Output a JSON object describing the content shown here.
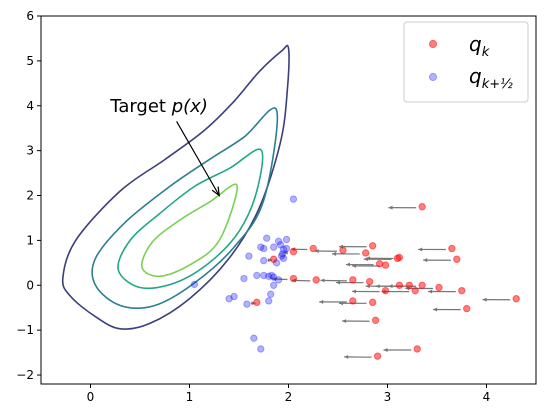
{
  "chart_data": {
    "type": "scatter",
    "xlim": [
      -0.5,
      4.5
    ],
    "ylim": [
      -2.2,
      6
    ],
    "x_ticks": [
      0,
      1,
      2,
      3,
      4
    ],
    "y_ticks": [
      -2,
      -1,
      0,
      1,
      2,
      3,
      4,
      5,
      6
    ],
    "grid": false,
    "legend": {
      "placement": "top-right",
      "entries": [
        {
          "label": "q",
          "sub": "k",
          "color": "#ff0000"
        },
        {
          "label": "q",
          "sub": "k+½",
          "color": "#0000ff"
        }
      ]
    },
    "annotation": {
      "text": "Target ",
      "math": "p(x)",
      "text_at": [
        0.2,
        4.0
      ],
      "arrow_to": [
        1.3,
        2.0
      ]
    },
    "contours": {
      "levels": 4,
      "colors": [
        "#3b3f7a",
        "#2a7f8e",
        "#22a884",
        "#7ad151"
      ],
      "outlines": [
        [
          [
            2.0,
            5.28
          ],
          [
            1.93,
            5.22
          ],
          [
            1.7,
            4.75
          ],
          [
            1.45,
            4.1
          ],
          [
            1.15,
            3.45
          ],
          [
            0.75,
            2.8
          ],
          [
            0.3,
            2.1
          ],
          [
            -0.15,
            1.0
          ],
          [
            -0.28,
            0.15
          ],
          [
            -0.2,
            -0.25
          ],
          [
            0.05,
            -0.7
          ],
          [
            0.3,
            -0.97
          ],
          [
            0.6,
            -0.85
          ],
          [
            1.0,
            -0.3
          ],
          [
            1.4,
            0.6
          ],
          [
            1.7,
            1.7
          ],
          [
            1.92,
            3.2
          ],
          [
            1.99,
            4.4
          ],
          [
            2.0,
            5.28
          ]
        ],
        [
          [
            1.88,
            3.9
          ],
          [
            1.55,
            3.3
          ],
          [
            1.2,
            2.8
          ],
          [
            0.8,
            2.2
          ],
          [
            0.35,
            1.4
          ],
          [
            0.05,
            0.6
          ],
          [
            0.05,
            0.0
          ],
          [
            0.3,
            -0.45
          ],
          [
            0.65,
            -0.45
          ],
          [
            1.05,
            0.05
          ],
          [
            1.45,
            0.85
          ],
          [
            1.75,
            1.9
          ],
          [
            1.88,
            3.9
          ]
        ],
        [
          [
            1.72,
            3.02
          ],
          [
            1.4,
            2.6
          ],
          [
            1.05,
            2.2
          ],
          [
            0.7,
            1.6
          ],
          [
            0.4,
            1.0
          ],
          [
            0.28,
            0.35
          ],
          [
            0.5,
            -0.05
          ],
          [
            0.85,
            0.05
          ],
          [
            1.2,
            0.5
          ],
          [
            1.5,
            1.2
          ],
          [
            1.68,
            2.1
          ],
          [
            1.72,
            3.02
          ]
        ],
        [
          [
            1.48,
            2.22
          ],
          [
            1.2,
            1.85
          ],
          [
            0.9,
            1.45
          ],
          [
            0.62,
            0.95
          ],
          [
            0.52,
            0.4
          ],
          [
            0.7,
            0.2
          ],
          [
            1.0,
            0.45
          ],
          [
            1.3,
            1.0
          ],
          [
            1.48,
            2.22
          ]
        ]
      ]
    },
    "series": [
      {
        "name": "q_k",
        "color": "#ff0000",
        "alpha": 0.5,
        "points": [
          [
            3.35,
            1.75
          ],
          [
            2.25,
            0.82
          ],
          [
            2.55,
            0.78
          ],
          [
            2.85,
            0.88
          ],
          [
            3.65,
            0.82
          ],
          [
            2.78,
            0.72
          ],
          [
            3.1,
            0.6
          ],
          [
            3.12,
            0.62
          ],
          [
            3.7,
            0.58
          ],
          [
            1.85,
            0.58
          ],
          [
            2.05,
            0.75
          ],
          [
            2.92,
            0.48
          ],
          [
            2.98,
            0.45
          ],
          [
            2.05,
            0.15
          ],
          [
            2.28,
            0.12
          ],
          [
            2.65,
            0.12
          ],
          [
            2.82,
            0.08
          ],
          [
            3.12,
            0.0
          ],
          [
            3.22,
            0.0
          ],
          [
            3.35,
            0.0
          ],
          [
            3.52,
            -0.05
          ],
          [
            3.75,
            -0.12
          ],
          [
            2.98,
            -0.12
          ],
          [
            3.28,
            -0.12
          ],
          [
            4.3,
            -0.3
          ],
          [
            1.68,
            -0.38
          ],
          [
            2.65,
            -0.35
          ],
          [
            2.85,
            -0.38
          ],
          [
            3.8,
            -0.52
          ],
          [
            2.88,
            -0.78
          ],
          [
            2.9,
            -1.58
          ],
          [
            3.3,
            -1.42
          ]
        ]
      },
      {
        "name": "q_k+1/2",
        "color": "#0000ff",
        "alpha": 0.3,
        "points": [
          [
            2.05,
            1.92
          ],
          [
            1.78,
            1.05
          ],
          [
            1.9,
            0.98
          ],
          [
            1.98,
            1.02
          ],
          [
            1.72,
            0.85
          ],
          [
            1.75,
            0.82
          ],
          [
            1.85,
            0.85
          ],
          [
            1.92,
            0.9
          ],
          [
            1.95,
            0.8
          ],
          [
            1.98,
            0.82
          ],
          [
            1.94,
            0.7
          ],
          [
            1.93,
            0.65
          ],
          [
            1.95,
            0.6
          ],
          [
            1.6,
            0.65
          ],
          [
            1.75,
            0.55
          ],
          [
            1.88,
            0.5
          ],
          [
            1.68,
            0.22
          ],
          [
            1.75,
            0.22
          ],
          [
            1.8,
            0.2
          ],
          [
            1.83,
            0.22
          ],
          [
            1.85,
            0.18
          ],
          [
            1.55,
            0.15
          ],
          [
            1.9,
            0.12
          ],
          [
            1.85,
            0.0
          ],
          [
            1.05,
            0.02
          ],
          [
            1.82,
            -0.2
          ],
          [
            1.45,
            -0.25
          ],
          [
            1.4,
            -0.3
          ],
          [
            1.8,
            -0.35
          ],
          [
            1.58,
            -0.42
          ],
          [
            1.65,
            -1.18
          ],
          [
            1.72,
            -1.42
          ]
        ]
      }
    ]
  }
}
